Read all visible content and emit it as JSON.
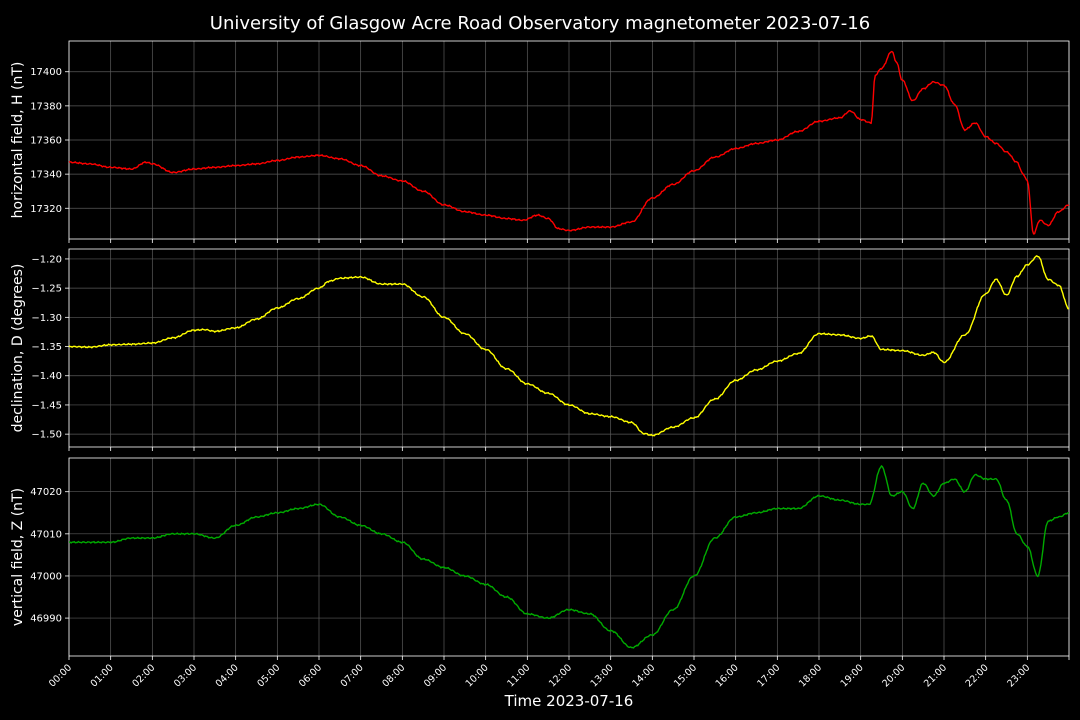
{
  "figure": {
    "title": "University of Glasgow Acre Road Observatory magnetometer 2023-07-16",
    "xlabel": "Time 2023-07-16",
    "background": "#000000",
    "grid_color": "#5a5a5a",
    "axis_color": "#ffffff"
  },
  "chart_data": [
    {
      "type": "line",
      "ylabel": "horizontal field, H (nT)",
      "color": "#ff0000",
      "grid": true,
      "xlim": [
        0,
        24
      ],
      "ylim": [
        17302,
        17418
      ],
      "yticks": [
        17320,
        17340,
        17360,
        17380,
        17400
      ],
      "x": [
        0,
        0.5,
        1,
        1.5,
        1.85,
        2,
        2.5,
        3,
        3.5,
        4,
        4.5,
        5,
        5.5,
        6,
        6.5,
        7,
        7.5,
        8,
        8.5,
        9,
        9.5,
        10,
        10.5,
        10.9,
        11.25,
        11.5,
        11.75,
        12,
        12.5,
        13,
        13.5,
        14,
        14.5,
        15,
        15.5,
        16,
        16.5,
        17,
        17.5,
        18,
        18.5,
        18.75,
        19,
        19.25,
        19.35,
        19.5,
        19.75,
        19.85,
        20,
        20.25,
        20.5,
        20.75,
        21,
        21.25,
        21.5,
        21.75,
        22,
        22.25,
        22.5,
        22.75,
        22.9,
        23,
        23.15,
        23.3,
        23.5,
        23.75,
        24
      ],
      "y": [
        17347,
        17346,
        17344,
        17343,
        17347,
        17346,
        17341,
        17343,
        17344,
        17345,
        17346,
        17348,
        17350,
        17351,
        17349,
        17345,
        17339,
        17336,
        17330,
        17322,
        17318,
        17316,
        17314,
        17313,
        17316,
        17314,
        17308,
        17307,
        17309,
        17309,
        17312,
        17326,
        17334,
        17342,
        17350,
        17355,
        17358,
        17360,
        17365,
        17371,
        17373,
        17377,
        17372,
        17370,
        17398,
        17402,
        17412,
        17406,
        17395,
        17383,
        17390,
        17394,
        17392,
        17381,
        17366,
        17370,
        17362,
        17358,
        17353,
        17347,
        17340,
        17336,
        17305,
        17313,
        17310,
        17318,
        17322
      ]
    },
    {
      "type": "line",
      "ylabel": "declination, D (degrees)",
      "color": "#ffff00",
      "grid": true,
      "xlim": [
        0,
        24
      ],
      "ylim": [
        -1.522,
        -1.183
      ],
      "yticks": [
        -1.5,
        -1.45,
        -1.4,
        -1.35,
        -1.3,
        -1.25,
        -1.2
      ],
      "x": [
        0,
        0.5,
        1,
        1.5,
        2,
        2.5,
        3,
        3.25,
        3.5,
        4,
        4.5,
        5,
        5.5,
        6,
        6.25,
        6.5,
        7,
        7.5,
        8,
        8.5,
        9,
        9.5,
        10,
        10.5,
        11,
        11.5,
        12,
        12.5,
        13,
        13.5,
        13.8,
        14,
        14.5,
        15,
        15.5,
        16,
        16.5,
        17,
        17.5,
        18,
        18.5,
        19,
        19.25,
        19.5,
        20,
        20.5,
        20.75,
        21,
        21.5,
        22,
        22.25,
        22.5,
        22.75,
        23,
        23.25,
        23.5,
        23.75,
        24
      ],
      "y": [
        -1.35,
        -1.351,
        -1.347,
        -1.346,
        -1.344,
        -1.335,
        -1.322,
        -1.321,
        -1.324,
        -1.318,
        -1.303,
        -1.284,
        -1.268,
        -1.25,
        -1.238,
        -1.233,
        -1.231,
        -1.243,
        -1.243,
        -1.265,
        -1.3,
        -1.328,
        -1.355,
        -1.388,
        -1.414,
        -1.43,
        -1.45,
        -1.465,
        -1.47,
        -1.48,
        -1.499,
        -1.502,
        -1.488,
        -1.472,
        -1.44,
        -1.408,
        -1.39,
        -1.375,
        -1.362,
        -1.328,
        -1.33,
        -1.336,
        -1.332,
        -1.355,
        -1.357,
        -1.365,
        -1.36,
        -1.377,
        -1.33,
        -1.26,
        -1.235,
        -1.262,
        -1.23,
        -1.21,
        -1.195,
        -1.235,
        -1.245,
        -1.285
      ]
    },
    {
      "type": "line",
      "ylabel": "vertical field, Z (nT)",
      "color": "#00aa00",
      "grid": true,
      "xlim": [
        0,
        24
      ],
      "ylim": [
        46981,
        47028
      ],
      "yticks": [
        46990,
        47000,
        47010,
        47020
      ],
      "x": [
        0,
        0.5,
        1,
        1.5,
        2,
        2.5,
        3,
        3.5,
        4,
        4.5,
        5,
        5.5,
        6,
        6.5,
        7,
        7.5,
        8,
        8.5,
        9,
        9.5,
        10,
        10.5,
        11,
        11.5,
        12,
        12.5,
        13,
        13.5,
        14,
        14.5,
        15,
        15.5,
        16,
        16.5,
        17,
        17.5,
        18,
        18.5,
        19,
        19.2,
        19.5,
        19.75,
        20,
        20.25,
        20.5,
        20.75,
        21,
        21.25,
        21.5,
        21.75,
        22,
        22.25,
        22.5,
        22.75,
        23,
        23.25,
        23.5,
        23.75,
        24
      ],
      "y": [
        47008,
        47008,
        47008,
        47009,
        47009,
        47010,
        47010,
        47009,
        47012,
        47014,
        47015,
        47016,
        47017,
        47014,
        47012,
        47010,
        47008,
        47004,
        47002,
        47000,
        46998,
        46995,
        46991,
        46990,
        46992,
        46991,
        46987,
        46983,
        46986,
        46992,
        47000,
        47009,
        47014,
        47015,
        47016,
        47016,
        47019,
        47018,
        47017,
        47017,
        47026,
        47019,
        47020,
        47016,
        47022,
        47019,
        47022,
        47023,
        47020,
        47024,
        47023,
        47023,
        47018,
        47010,
        47007,
        47000,
        47013,
        47014,
        47015
      ]
    }
  ],
  "xticks": [
    "00:00",
    "01:00",
    "02:00",
    "03:00",
    "04:00",
    "05:00",
    "06:00",
    "07:00",
    "08:00",
    "09:00",
    "10:00",
    "11:00",
    "12:00",
    "13:00",
    "14:00",
    "15:00",
    "16:00",
    "17:00",
    "18:00",
    "19:00",
    "20:00",
    "21:00",
    "22:00",
    "23:00"
  ]
}
